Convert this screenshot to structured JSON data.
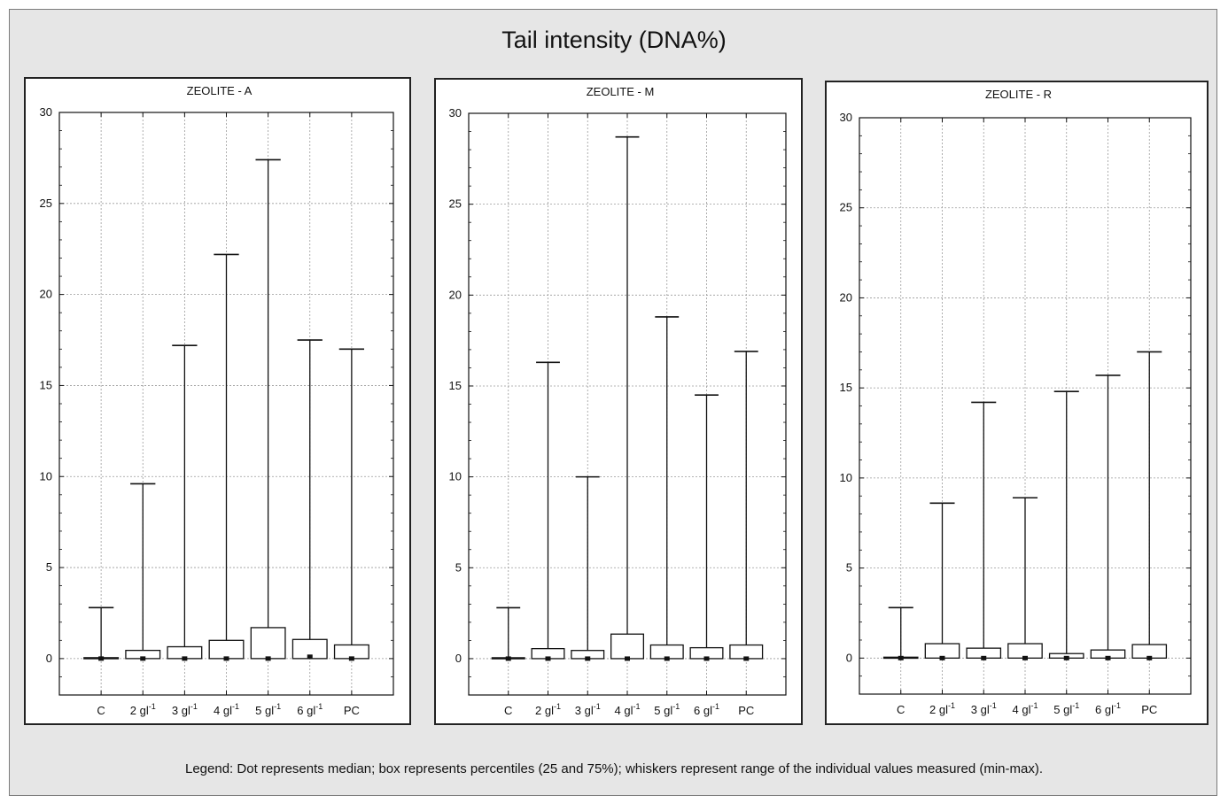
{
  "title": "Tail intensity (DNA%)",
  "legend": "Legend: Dot represents median; box represents percentiles (25 and 75%); whiskers represent range of the individual values measured (min-max).",
  "chart_data": [
    {
      "type": "box",
      "title": "ZEOLITE - A",
      "categories": [
        "C",
        "2 gl",
        "3 gl",
        "4 gl",
        "5 gl",
        "6 gl",
        "PC"
      ],
      "category_superscripts": [
        "",
        "-1",
        "-1",
        "-1",
        "-1",
        "-1",
        ""
      ],
      "ylim": [
        -2,
        30
      ],
      "yticks": [
        0,
        5,
        10,
        15,
        20,
        25,
        30
      ],
      "grid": true,
      "series": [
        {
          "name": "",
          "min": [
            0,
            0,
            0,
            0,
            0,
            0,
            0
          ],
          "q1": [
            0,
            0,
            0,
            0,
            0,
            0,
            0
          ],
          "median": [
            0,
            0,
            0,
            0,
            0,
            0.1,
            0
          ],
          "q3": [
            0.05,
            0.45,
            0.65,
            1.0,
            1.7,
            1.05,
            0.75
          ],
          "max": [
            2.8,
            9.6,
            17.2,
            22.2,
            27.4,
            17.5,
            17.0
          ]
        }
      ]
    },
    {
      "type": "box",
      "title": "ZEOLITE - M",
      "categories": [
        "C",
        "2 gl",
        "3 gl",
        "4 gl",
        "5 gl",
        "6 gl",
        "PC"
      ],
      "category_superscripts": [
        "",
        "-1",
        "-1",
        "-1",
        "-1",
        "-1",
        ""
      ],
      "ylim": [
        -2,
        30
      ],
      "yticks": [
        0,
        5,
        10,
        15,
        20,
        25,
        30
      ],
      "grid": true,
      "series": [
        {
          "name": "",
          "min": [
            0,
            0,
            0,
            0,
            0,
            0,
            0
          ],
          "q1": [
            0,
            0,
            0,
            0,
            0,
            0,
            0
          ],
          "median": [
            0,
            0,
            0,
            0,
            0,
            0,
            0
          ],
          "q3": [
            0.05,
            0.55,
            0.45,
            1.35,
            0.75,
            0.6,
            0.75
          ],
          "max": [
            2.8,
            16.3,
            10.0,
            28.7,
            18.8,
            14.5,
            16.9
          ]
        }
      ]
    },
    {
      "type": "box",
      "title": "ZEOLITE - R",
      "categories": [
        "C",
        "2 gl",
        "3 gl",
        "4 gl",
        "5 gl",
        "6 gl",
        "PC"
      ],
      "category_superscripts": [
        "",
        "-1",
        "-1",
        "-1",
        "-1",
        "-1",
        ""
      ],
      "ylim": [
        -2,
        30
      ],
      "yticks": [
        0,
        5,
        10,
        15,
        20,
        25,
        30
      ],
      "grid": true,
      "series": [
        {
          "name": "",
          "min": [
            0,
            0,
            0,
            0,
            0,
            0,
            0
          ],
          "q1": [
            0,
            0,
            0,
            0,
            0,
            0,
            0
          ],
          "median": [
            0,
            0,
            0,
            0,
            0,
            0,
            0
          ],
          "q3": [
            0.05,
            0.8,
            0.55,
            0.8,
            0.25,
            0.45,
            0.75
          ],
          "max": [
            2.8,
            8.6,
            14.2,
            8.9,
            14.8,
            15.7,
            17.0
          ]
        }
      ]
    }
  ]
}
